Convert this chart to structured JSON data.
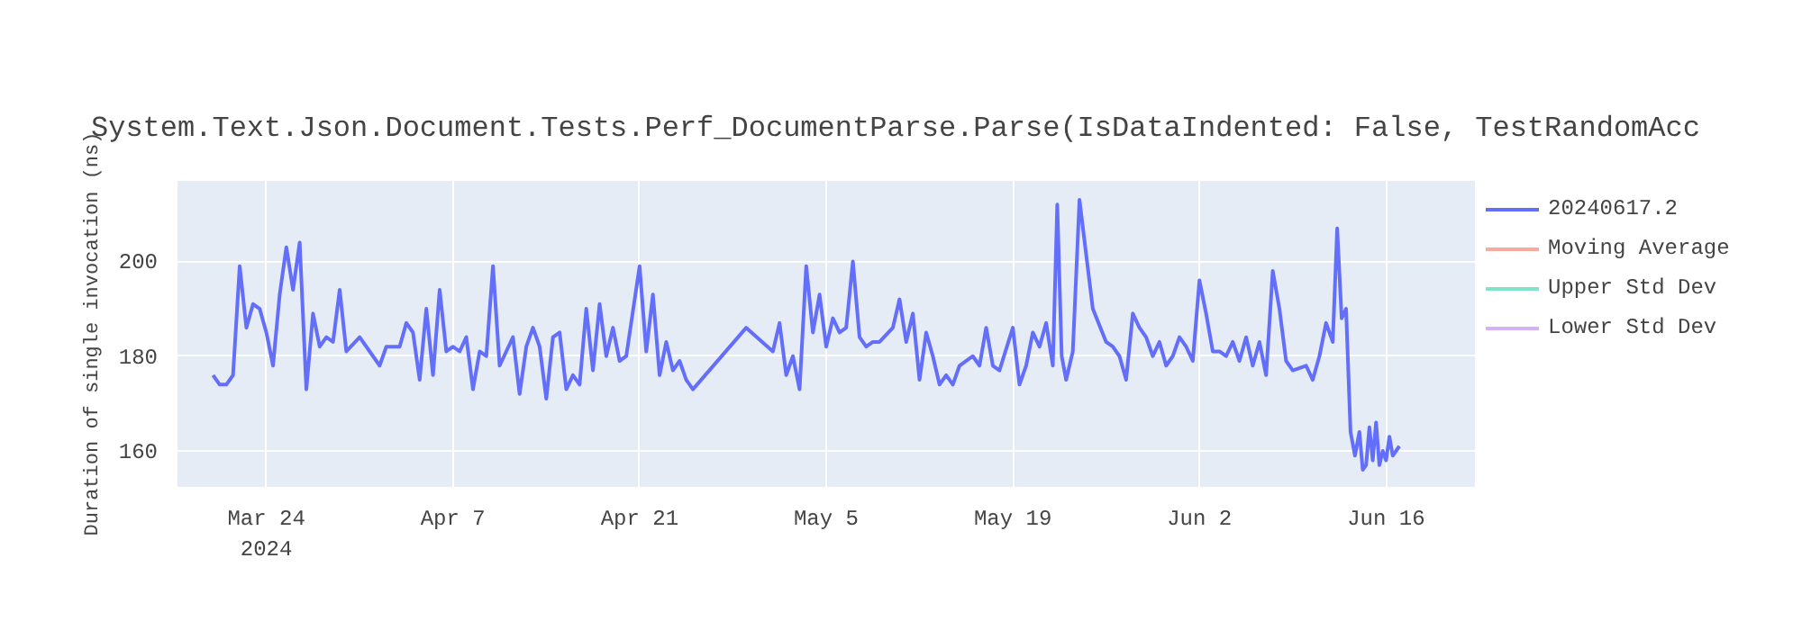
{
  "chart_data": {
    "type": "line",
    "title": "System.Text.Json.Document.Tests.Perf_DocumentParse.Parse(IsDataIndented: False, TestRandomAcc",
    "ylabel": "Duration of single invocation (ns)",
    "x": [
      "2024-03-20",
      "2024-03-20T12:00",
      "2024-03-21",
      "2024-03-21T12:00",
      "2024-03-22",
      "2024-03-22T12:00",
      "2024-03-23",
      "2024-03-23T12:00",
      "2024-03-24",
      "2024-03-24T12:00",
      "2024-03-25",
      "2024-03-25T12:00",
      "2024-03-26",
      "2024-03-26T12:00",
      "2024-03-27",
      "2024-03-27T12:00",
      "2024-03-28",
      "2024-03-28T12:00",
      "2024-03-29",
      "2024-03-29T12:00",
      "2024-03-30",
      "2024-03-31",
      "2024-04-01",
      "2024-04-01T12:00",
      "2024-04-02",
      "2024-04-03",
      "2024-04-03T12:00",
      "2024-04-04",
      "2024-04-04T12:00",
      "2024-04-05",
      "2024-04-05T12:00",
      "2024-04-06",
      "2024-04-06T12:00",
      "2024-04-07",
      "2024-04-07T12:00",
      "2024-04-08",
      "2024-04-08T12:00",
      "2024-04-09",
      "2024-04-09T12:00",
      "2024-04-10",
      "2024-04-10T12:00",
      "2024-04-11",
      "2024-04-11T12:00",
      "2024-04-12",
      "2024-04-12T12:00",
      "2024-04-13",
      "2024-04-13T12:00",
      "2024-04-14",
      "2024-04-14T12:00",
      "2024-04-15",
      "2024-04-15T12:00",
      "2024-04-16",
      "2024-04-16T12:00",
      "2024-04-17",
      "2024-04-17T12:00",
      "2024-04-18",
      "2024-04-18T12:00",
      "2024-04-19",
      "2024-04-19T12:00",
      "2024-04-20",
      "2024-04-21",
      "2024-04-21T12:00",
      "2024-04-22",
      "2024-04-22T12:00",
      "2024-04-23",
      "2024-04-23T12:00",
      "2024-04-24",
      "2024-04-24T12:00",
      "2024-04-25",
      "2024-04-29",
      "2024-05-01",
      "2024-05-01T12:00",
      "2024-05-02",
      "2024-05-02T12:00",
      "2024-05-03",
      "2024-05-03T12:00",
      "2024-05-04",
      "2024-05-04T12:00",
      "2024-05-05",
      "2024-05-05T12:00",
      "2024-05-06",
      "2024-05-06T12:00",
      "2024-05-07",
      "2024-05-07T12:00",
      "2024-05-08",
      "2024-05-08T12:00",
      "2024-05-09",
      "2024-05-10",
      "2024-05-10T12:00",
      "2024-05-11",
      "2024-05-11T12:00",
      "2024-05-12",
      "2024-05-12T12:00",
      "2024-05-13",
      "2024-05-13T12:00",
      "2024-05-14",
      "2024-05-14T12:00",
      "2024-05-15",
      "2024-05-16",
      "2024-05-16T12:00",
      "2024-05-17",
      "2024-05-17T12:00",
      "2024-05-18",
      "2024-05-19",
      "2024-05-19T12:00",
      "2024-05-20",
      "2024-05-20T12:00",
      "2024-05-21",
      "2024-05-21T12:00",
      "2024-05-22",
      "2024-05-22T08:00",
      "2024-05-22T16:00",
      "2024-05-23",
      "2024-05-23T12:00",
      "2024-05-24",
      "2024-05-25",
      "2024-05-26",
      "2024-05-26T12:00",
      "2024-05-27",
      "2024-05-27T12:00",
      "2024-05-28",
      "2024-05-28T12:00",
      "2024-05-29",
      "2024-05-29T12:00",
      "2024-05-30",
      "2024-05-30T12:00",
      "2024-05-31",
      "2024-05-31T12:00",
      "2024-06-01",
      "2024-06-01T12:00",
      "2024-06-02",
      "2024-06-02T12:00",
      "2024-06-03",
      "2024-06-03T12:00",
      "2024-06-04",
      "2024-06-04T12:00",
      "2024-06-05",
      "2024-06-05T12:00",
      "2024-06-06",
      "2024-06-06T12:00",
      "2024-06-07",
      "2024-06-07T12:00",
      "2024-06-08",
      "2024-06-08T12:00",
      "2024-06-09",
      "2024-06-10",
      "2024-06-10T12:00",
      "2024-06-11",
      "2024-06-11T12:00",
      "2024-06-12",
      "2024-06-12T08:00",
      "2024-06-12T16:00",
      "2024-06-13",
      "2024-06-13T08:00",
      "2024-06-13T16:00",
      "2024-06-14",
      "2024-06-14T06:00",
      "2024-06-14T12:00",
      "2024-06-14T18:00",
      "2024-06-15",
      "2024-06-15T06:00",
      "2024-06-15T12:00",
      "2024-06-15T18:00",
      "2024-06-16",
      "2024-06-16T06:00",
      "2024-06-16T12:00",
      "2024-06-16T18:00",
      "2024-06-17"
    ],
    "series": [
      {
        "name": "20240617.2",
        "color": "#636efa",
        "values": [
          176,
          174,
          174,
          176,
          199,
          186,
          191,
          190,
          185,
          178,
          193,
          203,
          194,
          204,
          173,
          189,
          182,
          184,
          183,
          194,
          181,
          184,
          180,
          178,
          182,
          182,
          187,
          185,
          175,
          190,
          176,
          194,
          181,
          182,
          181,
          184,
          173,
          181,
          180,
          199,
          178,
          181,
          184,
          172,
          182,
          186,
          182,
          171,
          184,
          185,
          173,
          176,
          174,
          190,
          177,
          191,
          180,
          186,
          179,
          180,
          199,
          181,
          193,
          176,
          183,
          177,
          179,
          175,
          173,
          186,
          181,
          187,
          176,
          180,
          173,
          199,
          185,
          193,
          182,
          188,
          185,
          186,
          200,
          184,
          182,
          183,
          183,
          186,
          192,
          183,
          189,
          175,
          185,
          180,
          174,
          176,
          174,
          178,
          180,
          178,
          186,
          178,
          177,
          186,
          174,
          178,
          185,
          182,
          187,
          178,
          212,
          180,
          175,
          181,
          213,
          190,
          183,
          182,
          180,
          175,
          189,
          186,
          184,
          180,
          183,
          178,
          180,
          184,
          182,
          179,
          196,
          189,
          181,
          181,
          180,
          183,
          179,
          184,
          178,
          183,
          176,
          198,
          190,
          179,
          177,
          178,
          175,
          180,
          187,
          183,
          207,
          188,
          190,
          164,
          159,
          164,
          156,
          157,
          165,
          158,
          166,
          157,
          160,
          158,
          163,
          159,
          160,
          161
        ]
      },
      {
        "name": "Moving Average",
        "color": "#ef553b",
        "values": [
          null,
          null,
          null,
          null,
          null,
          null,
          null,
          null,
          null,
          null,
          null,
          null,
          null,
          null,
          null,
          null,
          null,
          null,
          null,
          null,
          null,
          null,
          null,
          null,
          null,
          null,
          null,
          null,
          null,
          null,
          null,
          null,
          null,
          null,
          null,
          null,
          null,
          null,
          null,
          null,
          null,
          null,
          null,
          null,
          null,
          null,
          null,
          null,
          null,
          null,
          null,
          null,
          null,
          null,
          null,
          null,
          null,
          null,
          null,
          null,
          null,
          null,
          null,
          null,
          null,
          null,
          null,
          null,
          null,
          null,
          null,
          null,
          null,
          null,
          null,
          null,
          null,
          null,
          null,
          null,
          null,
          null,
          null,
          null,
          null,
          null,
          null,
          null,
          null,
          null,
          null,
          null,
          null,
          null,
          null,
          null,
          null,
          null,
          null,
          null,
          null,
          null,
          null,
          null,
          null,
          null,
          null,
          null,
          null,
          null,
          null,
          null,
          null,
          null,
          null,
          null,
          null,
          null,
          null,
          null,
          null,
          null,
          null,
          null,
          null,
          null,
          null,
          null,
          null,
          null,
          null,
          null,
          null,
          null,
          null,
          null,
          null,
          null,
          null,
          null,
          null,
          null,
          null,
          null,
          null,
          null,
          null,
          null,
          null,
          null,
          null,
          null,
          null,
          null,
          null,
          null,
          null,
          null,
          null,
          null,
          null,
          null,
          null,
          null,
          null,
          null,
          null,
          null
        ]
      },
      {
        "name": "Upper Std Dev",
        "color": "#00cc96",
        "values": [
          null,
          null,
          null,
          null,
          null,
          null,
          null,
          null,
          null,
          null,
          null,
          null,
          null,
          null,
          null,
          null,
          null,
          null,
          null,
          null,
          null,
          null,
          null,
          null,
          null,
          null,
          null,
          null,
          null,
          null,
          null,
          null,
          null,
          null,
          null,
          null,
          null,
          null,
          null,
          null,
          null,
          null,
          null,
          null,
          null,
          null,
          null,
          null,
          null,
          null,
          null,
          null,
          null,
          null,
          null,
          null,
          null,
          null,
          null,
          null,
          null,
          null,
          null,
          null,
          null,
          null,
          null,
          null,
          null,
          null,
          null,
          null,
          null,
          null,
          null,
          null,
          null,
          null,
          null,
          null,
          null,
          null,
          null,
          null,
          null,
          null,
          null,
          null,
          null,
          null,
          null,
          null,
          null,
          null,
          null,
          null,
          null,
          null,
          null,
          null,
          null,
          null,
          null,
          null,
          null,
          null,
          null,
          null,
          null,
          null,
          null,
          null,
          null,
          null,
          null,
          null,
          null,
          null,
          null,
          null,
          null,
          null,
          null,
          null,
          null,
          null,
          null,
          null,
          null,
          null,
          null,
          null,
          null,
          null,
          null,
          null,
          null,
          null,
          null,
          null,
          null,
          null,
          null,
          null,
          null,
          null,
          null,
          null,
          null,
          null,
          null,
          null,
          null,
          null,
          null,
          null,
          null,
          null,
          null,
          null,
          null,
          null,
          null,
          null,
          null,
          null,
          null,
          null
        ]
      },
      {
        "name": "Lower Std Dev",
        "color": "#ab63fa",
        "values": [
          null,
          null,
          null,
          null,
          null,
          null,
          null,
          null,
          null,
          null,
          null,
          null,
          null,
          null,
          null,
          null,
          null,
          null,
          null,
          null,
          null,
          null,
          null,
          null,
          null,
          null,
          null,
          null,
          null,
          null,
          null,
          null,
          null,
          null,
          null,
          null,
          null,
          null,
          null,
          null,
          null,
          null,
          null,
          null,
          null,
          null,
          null,
          null,
          null,
          null,
          null,
          null,
          null,
          null,
          null,
          null,
          null,
          null,
          null,
          null,
          null,
          null,
          null,
          null,
          null,
          null,
          null,
          null,
          null,
          null,
          null,
          null,
          null,
          null,
          null,
          null,
          null,
          null,
          null,
          null,
          null,
          null,
          null,
          null,
          null,
          null,
          null,
          null,
          null,
          null,
          null,
          null,
          null,
          null,
          null,
          null,
          null,
          null,
          null,
          null,
          null,
          null,
          null,
          null,
          null,
          null,
          null,
          null,
          null,
          null,
          null,
          null,
          null,
          null,
          null,
          null,
          null,
          null,
          null,
          null,
          null,
          null,
          null,
          null,
          null,
          null,
          null,
          null,
          null,
          null,
          null,
          null,
          null,
          null,
          null,
          null,
          null,
          null,
          null,
          null,
          null,
          null,
          null,
          null,
          null,
          null,
          null,
          null,
          null,
          null,
          null,
          null,
          null,
          null,
          null,
          null,
          null,
          null,
          null,
          null,
          null,
          null,
          null,
          null,
          null,
          null,
          null,
          null
        ]
      }
    ],
    "xlim": [
      "2024-03-17T08:00",
      "2024-06-22T16:00"
    ],
    "xticks": [
      {
        "value": "2024-03-24",
        "label": "Mar 24\n2024"
      },
      {
        "value": "2024-04-07",
        "label": "Apr 7"
      },
      {
        "value": "2024-04-21",
        "label": "Apr 21"
      },
      {
        "value": "2024-05-05",
        "label": "May 5"
      },
      {
        "value": "2024-05-19",
        "label": "May 19"
      },
      {
        "value": "2024-06-02",
        "label": "Jun 2"
      },
      {
        "value": "2024-06-16",
        "label": "Jun 16"
      }
    ],
    "ylim": [
      152.4,
      217
    ],
    "yticks": [
      160,
      180,
      200
    ],
    "grid": true,
    "legend": "right",
    "line_style": "solid",
    "marker": "none"
  }
}
